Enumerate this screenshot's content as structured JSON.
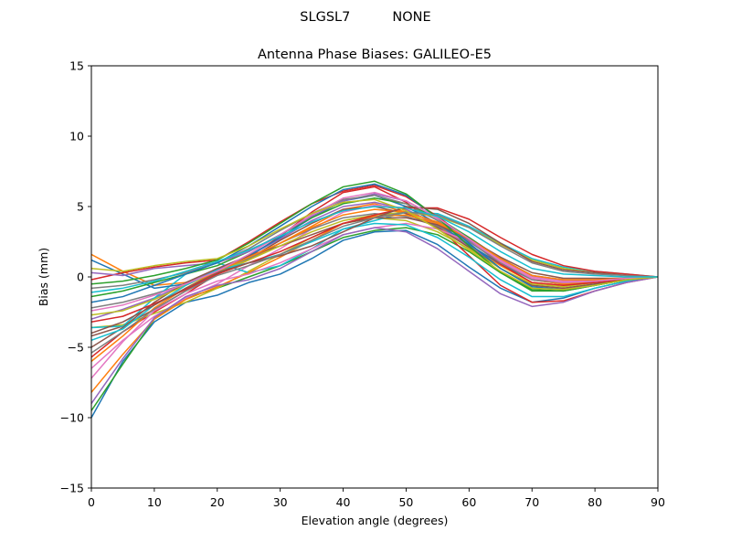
{
  "suptitle": "SLGSL7          NONE",
  "chart_data": {
    "type": "line",
    "title": "Antenna Phase Biases: GALILEO-E5",
    "xlabel": "Elevation angle (degrees)",
    "ylabel": "Bias (mm)",
    "xlim": [
      0,
      90
    ],
    "ylim": [
      -15,
      15
    ],
    "x_ticks": [
      0,
      10,
      20,
      30,
      40,
      50,
      60,
      70,
      80,
      90
    ],
    "y_ticks": [
      -15,
      -10,
      -5,
      0,
      5,
      10,
      15
    ],
    "x_tick_labels": [
      "0",
      "10",
      "20",
      "30",
      "40",
      "50",
      "60",
      "70",
      "80",
      "90"
    ],
    "y_tick_labels": [
      "−15",
      "−10",
      "−5",
      "0",
      "5",
      "10",
      "15"
    ],
    "grid": false,
    "legend": "none",
    "x": [
      0,
      5,
      10,
      15,
      20,
      25,
      30,
      35,
      40,
      45,
      50,
      55,
      60,
      65,
      70,
      75,
      80,
      85,
      90
    ],
    "colors": [
      "#1f77b4",
      "#ff7f0e",
      "#2ca02c",
      "#d62728",
      "#9467bd",
      "#8c564b",
      "#e377c2",
      "#7f7f7f",
      "#bcbd22",
      "#17becf"
    ],
    "series": [
      {
        "values": [
          -10.0,
          -6.0,
          -3.2,
          -1.8,
          -1.3,
          -0.4,
          0.2,
          1.3,
          2.6,
          3.2,
          3.3,
          2.3,
          0.7,
          -0.8,
          -1.8,
          -1.5,
          -0.8,
          -0.3,
          0.0
        ]
      },
      {
        "values": [
          1.6,
          0.4,
          -0.6,
          -0.4,
          0.2,
          1.2,
          2.4,
          3.6,
          4.8,
          5.2,
          4.6,
          3.6,
          2.2,
          0.8,
          -0.4,
          -0.6,
          -0.4,
          -0.2,
          0.0
        ]
      },
      {
        "values": [
          -9.5,
          -6.2,
          -3.0,
          -1.5,
          -0.8,
          0.0,
          0.8,
          1.8,
          2.8,
          3.3,
          3.5,
          3.0,
          1.8,
          0.3,
          -0.9,
          -1.0,
          -0.6,
          -0.2,
          0.0
        ]
      },
      {
        "values": [
          -5.7,
          -3.9,
          -2.5,
          -1.2,
          0.2,
          1.4,
          2.9,
          4.6,
          6.0,
          6.4,
          5.3,
          3.6,
          1.5,
          -0.6,
          -1.8,
          -1.7,
          -1.0,
          -0.4,
          0.0
        ]
      },
      {
        "values": [
          -3.0,
          -2.3,
          -1.5,
          -0.5,
          0.5,
          1.5,
          2.7,
          4.0,
          5.0,
          5.3,
          4.8,
          3.7,
          2.2,
          0.6,
          -0.6,
          -0.8,
          -0.5,
          -0.2,
          0.0
        ]
      },
      {
        "values": [
          -4.2,
          -3.5,
          -2.3,
          -1.0,
          0.2,
          1.3,
          2.6,
          3.8,
          4.8,
          5.0,
          4.5,
          3.5,
          2.1,
          0.6,
          -0.6,
          -0.8,
          -0.5,
          -0.2,
          0.0
        ]
      },
      {
        "values": [
          -6.5,
          -4.5,
          -2.8,
          -1.5,
          -0.5,
          0.8,
          2.0,
          3.4,
          4.6,
          5.1,
          4.9,
          4.1,
          2.8,
          1.3,
          0.1,
          -0.3,
          -0.2,
          -0.1,
          0.0
        ]
      },
      {
        "values": [
          -2.2,
          -1.8,
          -1.2,
          -0.5,
          0.4,
          1.3,
          2.4,
          3.4,
          4.2,
          4.5,
          4.3,
          3.6,
          2.5,
          1.2,
          0.1,
          -0.2,
          -0.2,
          -0.1,
          0.0
        ]
      },
      {
        "values": [
          -3.6,
          -3.4,
          -2.6,
          -1.8,
          -0.8,
          0.4,
          1.6,
          2.8,
          3.8,
          4.2,
          4.0,
          3.2,
          2.0,
          0.6,
          -0.5,
          -0.7,
          -0.4,
          -0.2,
          0.0
        ]
      },
      {
        "values": [
          -3.6,
          -3.5,
          -1.5,
          0.2,
          1.0,
          0.3,
          0.8,
          2.0,
          3.4,
          4.0,
          4.6,
          4.5,
          3.6,
          2.4,
          1.3,
          0.7,
          0.4,
          0.2,
          0.0
        ]
      },
      {
        "values": [
          1.2,
          0.2,
          -0.8,
          -0.5,
          0.3,
          1.5,
          2.8,
          4.2,
          5.4,
          5.8,
          5.0,
          3.8,
          2.3,
          0.9,
          -0.2,
          -0.5,
          -0.4,
          -0.2,
          0.0
        ]
      },
      {
        "values": [
          -8.2,
          -5.5,
          -3.0,
          -1.6,
          -0.7,
          0.3,
          1.4,
          2.6,
          3.8,
          4.3,
          4.4,
          3.8,
          2.6,
          1.1,
          -0.2,
          -0.5,
          -0.4,
          -0.2,
          0.0
        ]
      },
      {
        "values": [
          -1.4,
          -1.0,
          -0.4,
          0.2,
          0.8,
          1.8,
          3.0,
          4.2,
          5.2,
          5.6,
          5.2,
          4.2,
          2.8,
          1.3,
          0.1,
          -0.3,
          -0.3,
          -0.1,
          0.0
        ]
      },
      {
        "values": [
          -0.2,
          0.3,
          0.7,
          1.0,
          1.2,
          2.5,
          3.9,
          5.2,
          6.1,
          6.5,
          5.7,
          4.3,
          2.6,
          0.9,
          -0.4,
          -0.6,
          -0.4,
          -0.2,
          0.0
        ]
      },
      {
        "values": [
          0.3,
          0.1,
          0.6,
          0.8,
          1.0,
          1.8,
          3.0,
          4.3,
          5.4,
          5.9,
          5.4,
          4.2,
          2.6,
          1.0,
          -0.2,
          -0.4,
          -0.3,
          -0.1,
          0.0
        ]
      },
      {
        "values": [
          -5.0,
          -3.6,
          -1.8,
          -0.4,
          0.6,
          1.5,
          2.2,
          3.0,
          3.8,
          4.2,
          4.2,
          3.7,
          2.7,
          1.4,
          0.3,
          -0.1,
          -0.1,
          -0.1,
          0.0
        ]
      },
      {
        "values": [
          -7.2,
          -4.6,
          -2.4,
          -1.2,
          -0.3,
          0.2,
          1.0,
          2.0,
          3.0,
          3.5,
          3.8,
          3.4,
          2.5,
          1.2,
          0.0,
          -0.3,
          -0.3,
          -0.1,
          0.0
        ]
      },
      {
        "values": [
          -0.8,
          -0.6,
          -0.2,
          0.3,
          1.0,
          2.0,
          3.3,
          4.5,
          5.5,
          5.8,
          5.2,
          4.0,
          2.5,
          1.0,
          -0.2,
          -0.4,
          -0.3,
          -0.1,
          0.0
        ]
      },
      {
        "values": [
          -2.7,
          -2.4,
          -1.6,
          -0.6,
          0.4,
          1.2,
          2.2,
          3.2,
          4.0,
          4.4,
          4.6,
          4.3,
          3.5,
          2.3,
          1.2,
          0.6,
          0.3,
          0.1,
          0.0
        ]
      },
      {
        "values": [
          -4.5,
          -3.7,
          -2.0,
          -0.6,
          0.5,
          1.0,
          1.6,
          2.5,
          3.4,
          3.8,
          3.7,
          2.8,
          1.4,
          -0.2,
          -1.4,
          -1.4,
          -0.8,
          -0.3,
          0.0
        ]
      },
      {
        "values": [
          -1.8,
          -1.4,
          -0.6,
          0.2,
          1.0,
          2.2,
          3.6,
          5.0,
          6.2,
          6.6,
          5.8,
          4.2,
          2.4,
          0.6,
          -0.7,
          -0.9,
          -0.6,
          -0.2,
          0.0
        ]
      },
      {
        "values": [
          -6.0,
          -4.2,
          -2.2,
          -0.8,
          0.4,
          1.4,
          2.4,
          3.5,
          4.4,
          4.8,
          4.6,
          3.9,
          2.7,
          1.3,
          0.1,
          -0.2,
          -0.2,
          -0.1,
          0.0
        ]
      },
      {
        "values": [
          -0.5,
          -0.3,
          0.1,
          0.6,
          1.2,
          2.4,
          3.8,
          5.2,
          6.4,
          6.8,
          5.9,
          4.2,
          2.2,
          0.3,
          -1.0,
          -1.0,
          -0.6,
          -0.2,
          0.0
        ]
      },
      {
        "values": [
          -3.2,
          -2.8,
          -1.9,
          -0.9,
          0.2,
          1.0,
          1.8,
          2.8,
          3.8,
          4.4,
          4.9,
          4.9,
          4.1,
          2.8,
          1.6,
          0.8,
          0.4,
          0.2,
          0.0
        ]
      },
      {
        "values": [
          -9.0,
          -5.8,
          -2.9,
          -1.4,
          -0.6,
          -0.2,
          0.6,
          1.8,
          3.0,
          3.5,
          3.2,
          2.0,
          0.4,
          -1.2,
          -2.1,
          -1.8,
          -1.0,
          -0.4,
          0.0
        ]
      },
      {
        "values": [
          -4.0,
          -3.2,
          -2.0,
          -0.8,
          0.3,
          1.0,
          1.5,
          2.2,
          3.2,
          4.2,
          5.0,
          4.8,
          3.8,
          2.4,
          1.1,
          0.5,
          0.3,
          0.1,
          0.0
        ]
      },
      {
        "values": [
          -2.4,
          -2.0,
          -1.3,
          -0.5,
          0.4,
          1.6,
          3.0,
          4.4,
          5.6,
          6.0,
          5.4,
          4.2,
          2.7,
          1.1,
          -0.1,
          -0.4,
          -0.3,
          -0.1,
          0.0
        ]
      },
      {
        "values": [
          -5.4,
          -3.9,
          -2.3,
          -1.0,
          0.1,
          0.8,
          1.6,
          2.6,
          3.6,
          4.2,
          4.6,
          4.4,
          3.5,
          2.2,
          1.0,
          0.4,
          0.2,
          0.1,
          0.0
        ]
      },
      {
        "values": [
          0.6,
          0.4,
          0.8,
          1.1,
          1.3,
          2.2,
          3.4,
          4.5,
          5.3,
          5.5,
          4.7,
          3.4,
          1.9,
          0.4,
          -0.8,
          -0.9,
          -0.6,
          -0.2,
          0.0
        ]
      },
      {
        "values": [
          -1.1,
          -0.8,
          -0.3,
          0.4,
          1.1,
          1.9,
          2.9,
          3.9,
          4.7,
          5.0,
          4.9,
          4.3,
          3.2,
          1.8,
          0.6,
          0.2,
          0.1,
          0.0,
          0.0
        ]
      }
    ]
  }
}
